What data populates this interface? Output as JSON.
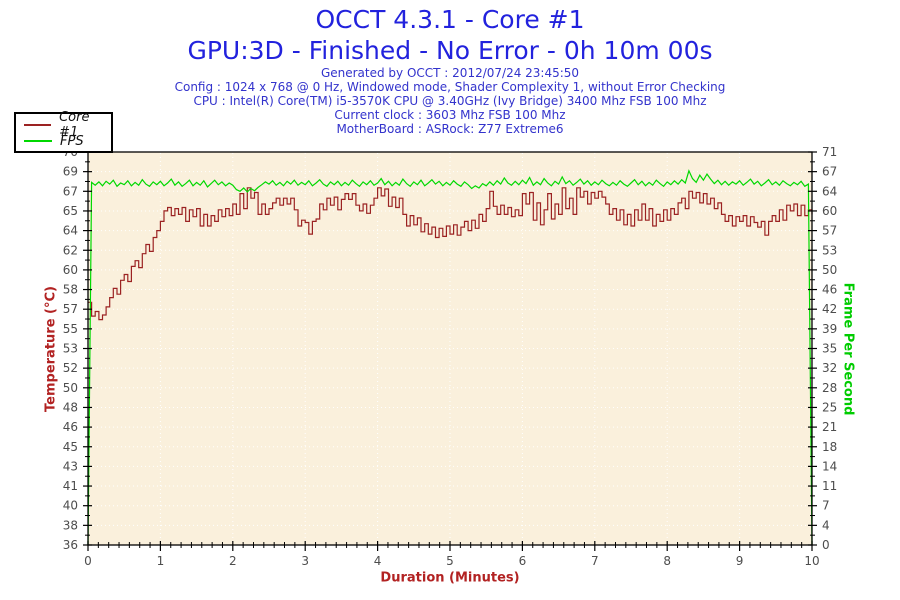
{
  "header": {
    "title": "OCCT 4.3.1 - Core #1",
    "subtitle": "GPU:3D - Finished - No Error - 0h 10m 00s",
    "info_lines": [
      "Generated by OCCT : 2012/07/24 23:45:50",
      "Config : 1024 x 768 @ 0 Hz, Windowed mode, Shader Complexity 1, without Error Checking",
      "CPU : Intel(R) Core(TM) i5-3570K CPU @ 3.40GHz (Ivy Bridge) 3400 Mhz FSB 100 Mhz",
      "Current clock : 3603 Mhz FSB 100 Mhz",
      "MotherBoard : ASRock: Z77 Extreme6"
    ],
    "title_color": "#2222dd",
    "info_color": "#3333cc"
  },
  "legend": {
    "items": [
      {
        "label": "Core #1",
        "color": "#9b2222"
      },
      {
        "label": "FPS",
        "color": "#00d800"
      }
    ]
  },
  "chart_data": {
    "type": "line",
    "title": "OCCT 4.3.1 - Core #1",
    "x_axis": {
      "label": "Duration (Minutes)",
      "min": 0,
      "max": 10,
      "tick_labels": [
        "0",
        "1",
        "2",
        "3",
        "4",
        "5",
        "6",
        "7",
        "8",
        "9",
        "10"
      ],
      "minor_per_interval": 6
    },
    "y_left": {
      "label": "Temperature (°C)",
      "min": 36,
      "max": 70,
      "tick_labels": [
        "70",
        "69",
        "67",
        "65",
        "64",
        "62",
        "60",
        "58",
        "57",
        "55",
        "53",
        "52",
        "50",
        "48",
        "46",
        "45",
        "43",
        "41",
        "40",
        "38",
        "36"
      ]
    },
    "y_right": {
      "label": "Frame Per Second",
      "min": 0,
      "max": 71,
      "tick_labels": [
        "71",
        "67",
        "64",
        "60",
        "57",
        "53",
        "50",
        "46",
        "42",
        "39",
        "35",
        "32",
        "28",
        "25",
        "21",
        "18",
        "14",
        "11",
        "7",
        "4",
        "0"
      ]
    },
    "grid": "dotted-white",
    "legend_position": "top-left",
    "colors": {
      "plot_bg": "#faf0dc",
      "grid": "#ffffff",
      "axis": "#000000",
      "tick_label": "#4d4d4d",
      "temp_series": "#9b2222",
      "fps_series": "#00d800"
    },
    "series": [
      {
        "name": "Core #1",
        "axis": "left",
        "unit": "°C",
        "style": "step",
        "x_start": 0,
        "x_step": 0.05,
        "values": [
          57.0,
          55.8,
          56.2,
          55.5,
          55.9,
          56.6,
          57.4,
          58.2,
          57.7,
          58.9,
          59.4,
          58.8,
          60.1,
          60.6,
          60.0,
          61.2,
          62.0,
          61.4,
          62.6,
          63.2,
          64.0,
          64.9,
          65.2,
          64.5,
          65.1,
          64.6,
          65.2,
          64.0,
          65.0,
          64.4,
          65.1,
          63.6,
          64.6,
          63.6,
          64.5,
          64.0,
          65.0,
          64.4,
          65.1,
          64.5,
          65.5,
          64.6,
          66.4,
          65.1,
          66.9,
          66.0,
          66.5,
          64.6,
          65.5,
          64.6,
          65.1,
          65.6,
          66.0,
          65.4,
          66.0,
          65.5,
          66.0,
          65.0,
          63.6,
          64.1,
          63.9,
          62.9,
          64.0,
          64.2,
          65.5,
          65.0,
          66.0,
          65.4,
          66.1,
          65.0,
          65.9,
          66.4,
          65.9,
          66.4,
          65.4,
          64.9,
          65.5,
          64.7,
          65.4,
          66.0,
          66.9,
          66.2,
          66.8,
          65.3,
          66.1,
          65.2,
          66.0,
          64.6,
          63.6,
          64.5,
          63.7,
          64.3,
          63.1,
          63.8,
          62.9,
          63.5,
          62.6,
          63.4,
          62.7,
          63.6,
          62.9,
          63.7,
          62.8,
          63.5,
          64.0,
          63.2,
          64.1,
          63.4,
          64.6,
          64.0,
          65.1,
          66.6,
          65.3,
          64.6,
          65.4,
          64.6,
          65.2,
          64.4,
          65.0,
          64.5,
          66.4,
          65.5,
          66.5,
          64.1,
          65.6,
          63.7,
          65.0,
          66.4,
          64.2,
          65.5,
          64.6,
          66.9,
          65.1,
          66.0,
          64.6,
          66.9,
          66.1,
          66.6,
          65.5,
          66.5,
          66.0,
          66.6,
          66.1,
          65.5,
          64.6,
          65.1,
          64.1,
          65.0,
          63.7,
          64.6,
          63.6,
          65.0,
          64.1,
          65.5,
          64.1,
          65.1,
          63.6,
          64.6,
          64.0,
          65.0,
          64.1,
          65.1,
          64.6,
          65.6,
          66.0,
          65.1,
          66.6,
          66.0,
          66.5,
          65.6,
          66.4,
          65.5,
          66.0,
          65.1,
          65.6,
          64.6,
          64.0,
          64.5,
          63.6,
          64.4,
          64.0,
          64.5,
          63.6,
          64.4,
          63.9,
          63.5,
          64.0,
          62.8,
          64.0,
          64.5,
          64.0,
          65.0,
          64.1,
          65.4,
          64.9,
          65.5,
          64.5,
          65.4,
          64.5,
          65.0,
          64.6
        ]
      },
      {
        "name": "FPS",
        "axis": "right",
        "unit": "fps",
        "style": "line",
        "x_start": 0,
        "x_step": 0.05,
        "values": [
          0,
          65.5,
          65.0,
          65.6,
          64.9,
          65.7,
          65.2,
          65.9,
          64.8,
          65.4,
          65.1,
          65.8,
          64.9,
          65.5,
          65.0,
          66.0,
          65.2,
          64.8,
          65.6,
          65.1,
          65.7,
          64.9,
          65.4,
          66.1,
          65.0,
          65.6,
          64.8,
          65.3,
          65.9,
          64.9,
          65.5,
          65.0,
          65.8,
          64.7,
          65.3,
          65.9,
          65.1,
          65.6,
          64.9,
          65.4,
          65.0,
          64.2,
          63.9,
          64.5,
          63.8,
          64.4,
          64.0,
          64.6,
          65.1,
          65.6,
          65.2,
          65.8,
          65.0,
          65.5,
          64.9,
          65.7,
          65.2,
          65.9,
          65.0,
          65.5,
          65.1,
          65.8,
          64.9,
          65.4,
          66.0,
          65.2,
          64.8,
          65.6,
          65.1,
          65.7,
          64.9,
          65.5,
          65.0,
          65.9,
          65.3,
          64.8,
          65.6,
          65.1,
          65.8,
          65.0,
          65.4,
          66.2,
          65.1,
          65.7,
          64.9,
          65.5,
          65.0,
          66.1,
          65.3,
          64.8,
          65.6,
          65.1,
          65.9,
          64.9,
          65.4,
          66.0,
          65.2,
          65.7,
          64.9,
          65.5,
          65.0,
          65.8,
          65.2,
          64.8,
          65.6,
          65.1,
          64.4,
          64.9,
          64.5,
          65.3,
          64.9,
          65.6,
          65.0,
          65.8,
          65.2,
          66.3,
          65.4,
          65.0,
          65.7,
          65.1,
          65.9,
          65.3,
          66.4,
          65.0,
          65.6,
          65.1,
          66.2,
          65.4,
          64.9,
          65.7,
          65.2,
          66.5,
          65.3,
          65.8,
          65.0,
          65.5,
          66.1,
          65.2,
          65.8,
          65.0,
          65.6,
          65.1,
          65.9,
          65.3,
          64.9,
          65.5,
          65.0,
          65.8,
          65.2,
          64.8,
          65.4,
          66.0,
          65.1,
          65.7,
          64.9,
          65.5,
          65.0,
          65.9,
          65.3,
          64.8,
          65.6,
          65.1,
          65.8,
          65.2,
          66.0,
          65.4,
          67.6,
          66.2,
          65.5,
          66.8,
          65.9,
          67.0,
          66.1,
          65.3,
          65.9,
          65.1,
          65.7,
          65.0,
          65.6,
          65.2,
          65.8,
          65.0,
          65.5,
          66.1,
          65.2,
          65.7,
          64.9,
          65.4,
          66.0,
          65.1,
          65.6,
          65.0,
          65.8,
          65.3,
          64.9,
          65.5,
          65.1,
          65.7,
          64.8,
          65.2,
          0
        ]
      }
    ]
  }
}
